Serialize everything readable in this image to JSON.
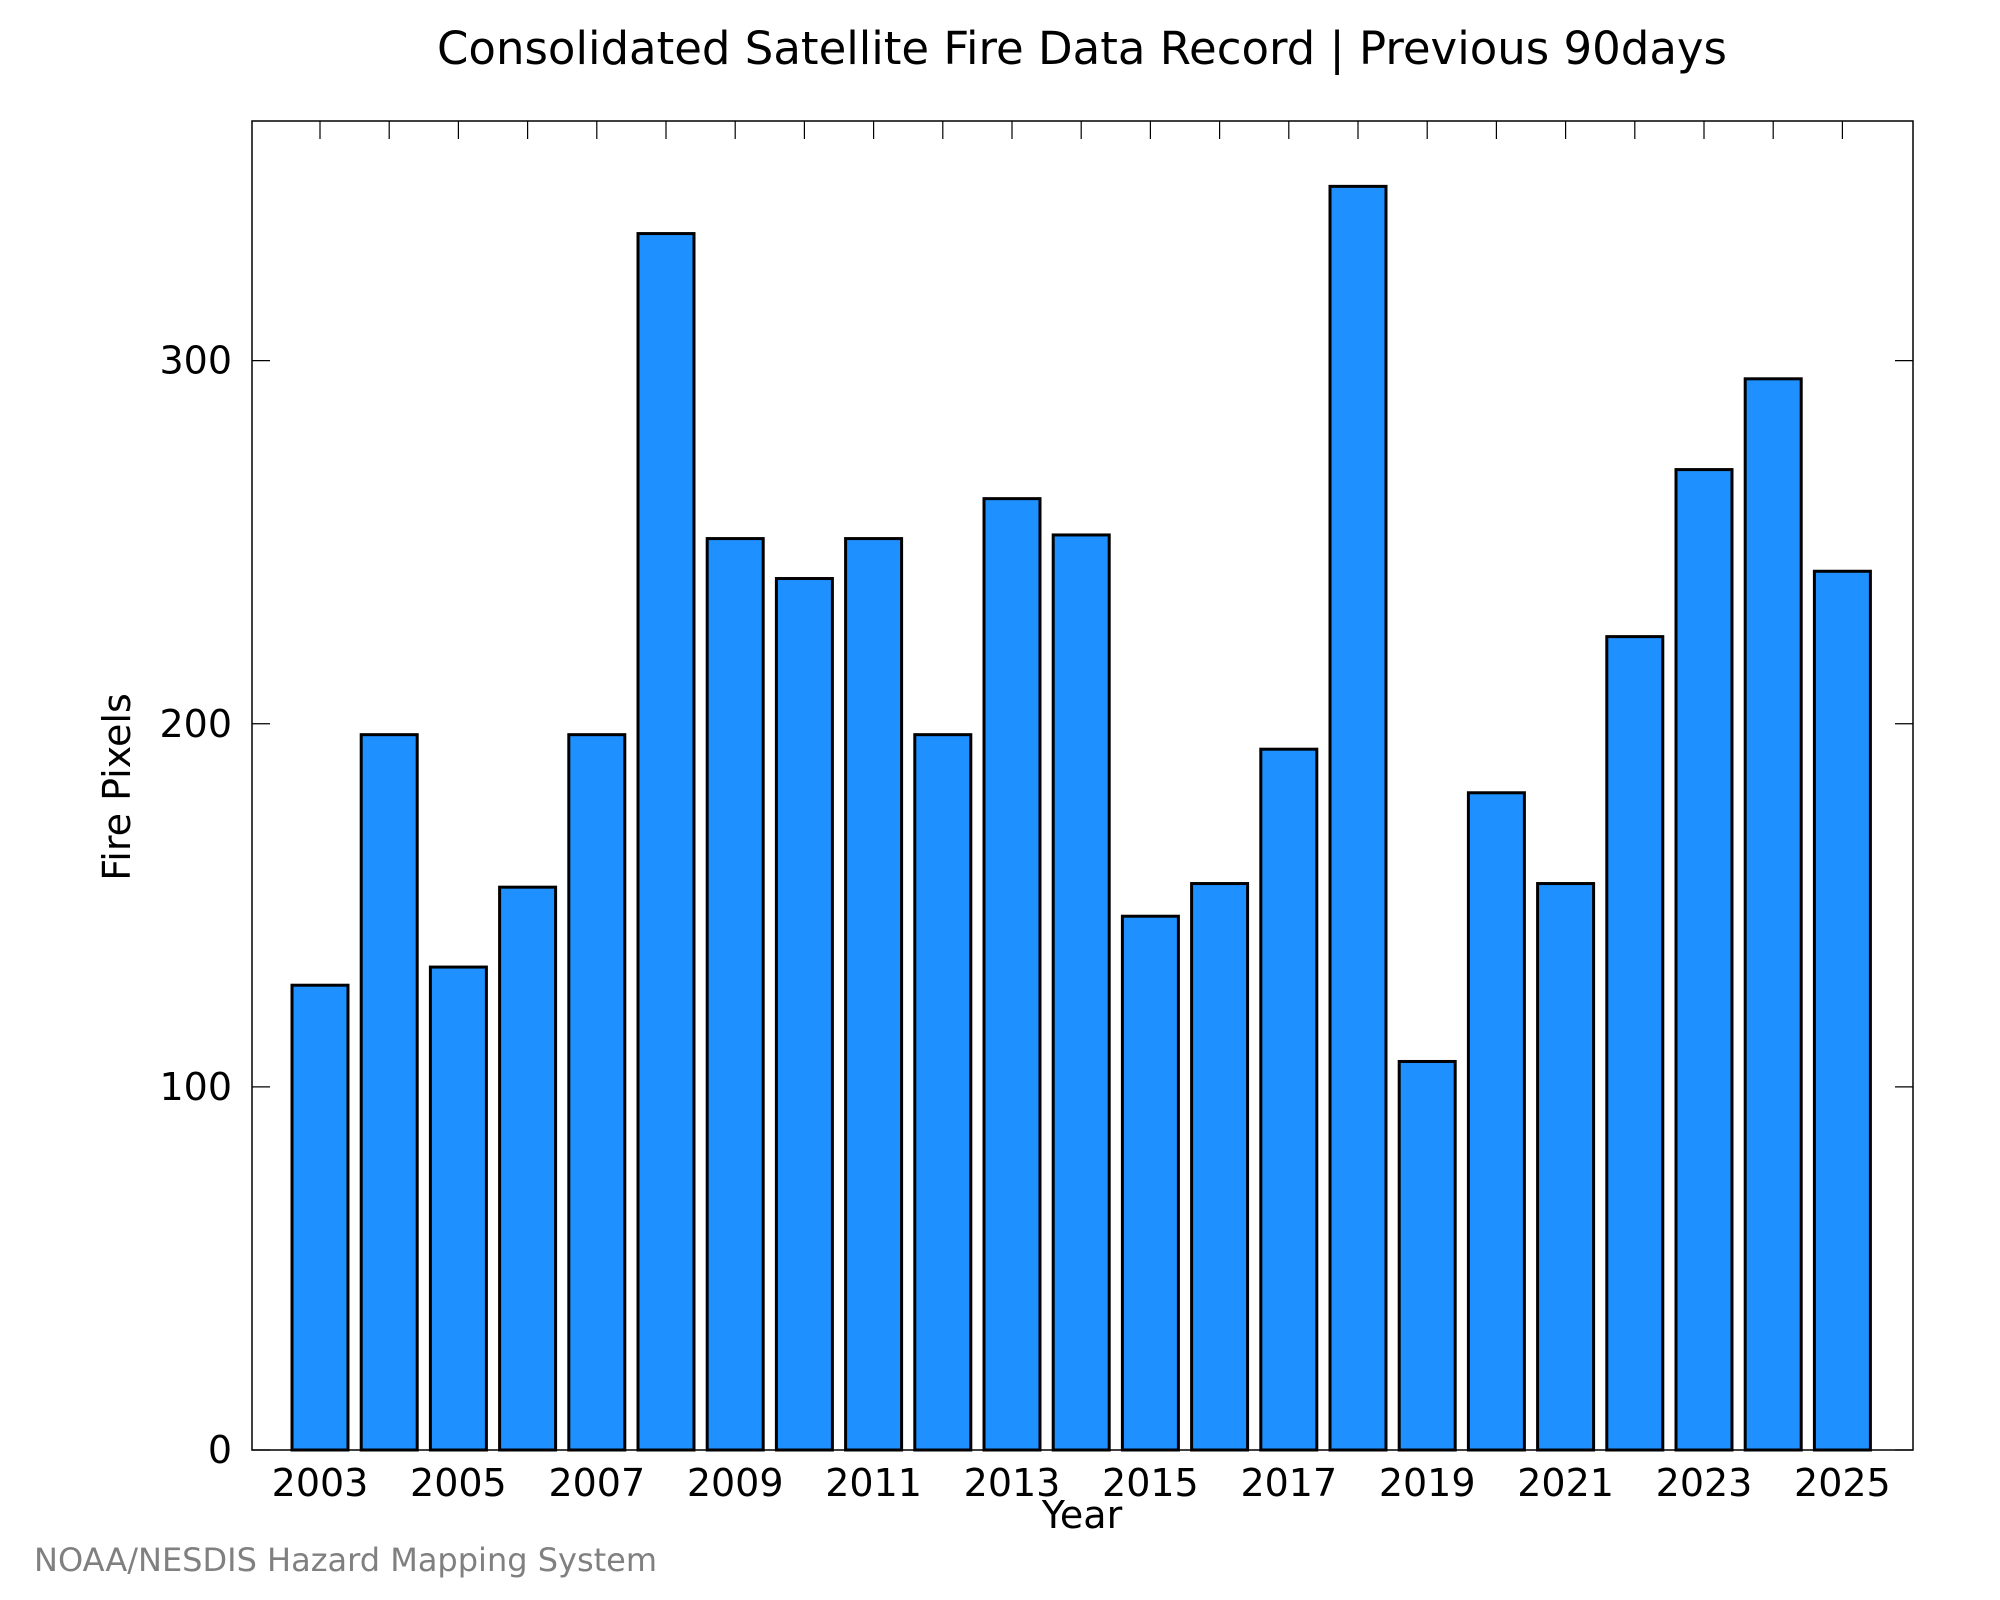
{
  "credit": "NOAA/NESDIS Hazard Mapping System",
  "colors": {
    "bar": "#1E90FF",
    "bar_outline": "#000000",
    "credit": "#808080"
  },
  "chart_data": {
    "type": "bar",
    "title": "Consolidated Satellite Fire Data Record | Previous 90days",
    "xlabel": "Year",
    "ylabel": "Fire Pixels",
    "categories": [
      "2003",
      "2004",
      "2005",
      "2006",
      "2007",
      "2008",
      "2009",
      "2010",
      "2011",
      "2012",
      "2013",
      "2014",
      "2015",
      "2016",
      "2017",
      "2018",
      "2019",
      "2020",
      "2021",
      "2022",
      "2023",
      "2024",
      "2025"
    ],
    "values": [
      128,
      197,
      133,
      155,
      197,
      335,
      251,
      240,
      251,
      197,
      262,
      252,
      147,
      156,
      193,
      348,
      107,
      181,
      156,
      224,
      270,
      295,
      242
    ],
    "x_tick_labels": [
      "2003",
      "2005",
      "2007",
      "2009",
      "2011",
      "2013",
      "2015",
      "2017",
      "2019",
      "2021",
      "2023",
      "2025"
    ],
    "y_ticks": [
      0,
      100,
      200,
      300
    ],
    "ylim": [
      0,
      366
    ],
    "grid": false,
    "legend": "none"
  }
}
